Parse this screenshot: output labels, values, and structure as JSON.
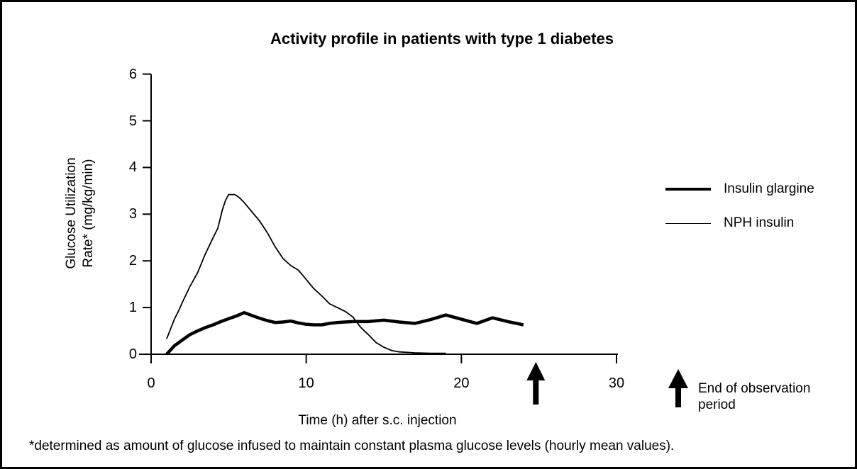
{
  "footnote": "*determined as amount of glucose infused to maintain constant plasma glucose levels (hourly mean values).",
  "colors": {
    "line": "#000000",
    "background": "#ffffff",
    "border": "#000000"
  },
  "chart_data": {
    "type": "line",
    "title": "Activity profile in patients with type 1 diabetes",
    "xlabel": "Time (h) after s.c. injection",
    "ylabel": "Glucose Utilization\nRate* (mg/kg/min)",
    "xlim": [
      0,
      30
    ],
    "ylim": [
      0,
      6
    ],
    "x_ticks": [
      0,
      10,
      20,
      30
    ],
    "y_ticks": [
      0,
      1,
      2,
      3,
      4,
      5,
      6
    ],
    "grid": false,
    "legend_position": "right of plot",
    "series": [
      {
        "name": "Insulin glargine",
        "stroke_width": 4.5,
        "points": [
          [
            1,
            0
          ],
          [
            1.5,
            0.18
          ],
          [
            2,
            0.3
          ],
          [
            2.5,
            0.42
          ],
          [
            3,
            0.5
          ],
          [
            3.5,
            0.57
          ],
          [
            4,
            0.63
          ],
          [
            4.5,
            0.7
          ],
          [
            5,
            0.76
          ],
          [
            5.5,
            0.82
          ],
          [
            6,
            0.89
          ],
          [
            6.5,
            0.83
          ],
          [
            7,
            0.77
          ],
          [
            7.5,
            0.72
          ],
          [
            8,
            0.68
          ],
          [
            8.5,
            0.69
          ],
          [
            9,
            0.71
          ],
          [
            9.5,
            0.67
          ],
          [
            10,
            0.64
          ],
          [
            10.5,
            0.63
          ],
          [
            11,
            0.63
          ],
          [
            11.5,
            0.66
          ],
          [
            12,
            0.68
          ],
          [
            12.5,
            0.69
          ],
          [
            13,
            0.7
          ],
          [
            14,
            0.7
          ],
          [
            15,
            0.73
          ],
          [
            16,
            0.69
          ],
          [
            17,
            0.66
          ],
          [
            18,
            0.74
          ],
          [
            19,
            0.84
          ],
          [
            20,
            0.75
          ],
          [
            21,
            0.66
          ],
          [
            22,
            0.78
          ],
          [
            23,
            0.7
          ],
          [
            24,
            0.63
          ]
        ]
      },
      {
        "name": "NPH insulin",
        "stroke_width": 1.8,
        "points": [
          [
            1,
            0.33
          ],
          [
            1.5,
            0.75
          ],
          [
            1.8,
            0.95
          ],
          [
            2,
            1.1
          ],
          [
            2.5,
            1.45
          ],
          [
            3,
            1.75
          ],
          [
            3.5,
            2.15
          ],
          [
            4,
            2.5
          ],
          [
            4.3,
            2.7
          ],
          [
            4.6,
            3.1
          ],
          [
            4.8,
            3.3
          ],
          [
            5,
            3.42
          ],
          [
            5.4,
            3.42
          ],
          [
            5.7,
            3.35
          ],
          [
            6,
            3.25
          ],
          [
            6.5,
            3.05
          ],
          [
            7,
            2.85
          ],
          [
            7.5,
            2.6
          ],
          [
            8,
            2.3
          ],
          [
            8.5,
            2.05
          ],
          [
            9,
            1.9
          ],
          [
            9.5,
            1.8
          ],
          [
            10,
            1.6
          ],
          [
            10.5,
            1.4
          ],
          [
            11,
            1.25
          ],
          [
            11.5,
            1.08
          ],
          [
            12,
            1.0
          ],
          [
            12.5,
            0.92
          ],
          [
            13,
            0.8
          ],
          [
            13.5,
            0.58
          ],
          [
            14,
            0.42
          ],
          [
            14.5,
            0.25
          ],
          [
            15,
            0.15
          ],
          [
            15.5,
            0.08
          ],
          [
            16,
            0.05
          ],
          [
            17,
            0.03
          ],
          [
            18,
            0.02
          ],
          [
            19,
            0.02
          ]
        ]
      }
    ],
    "annotation": {
      "label": "End of observation period",
      "x": 24.8
    }
  }
}
